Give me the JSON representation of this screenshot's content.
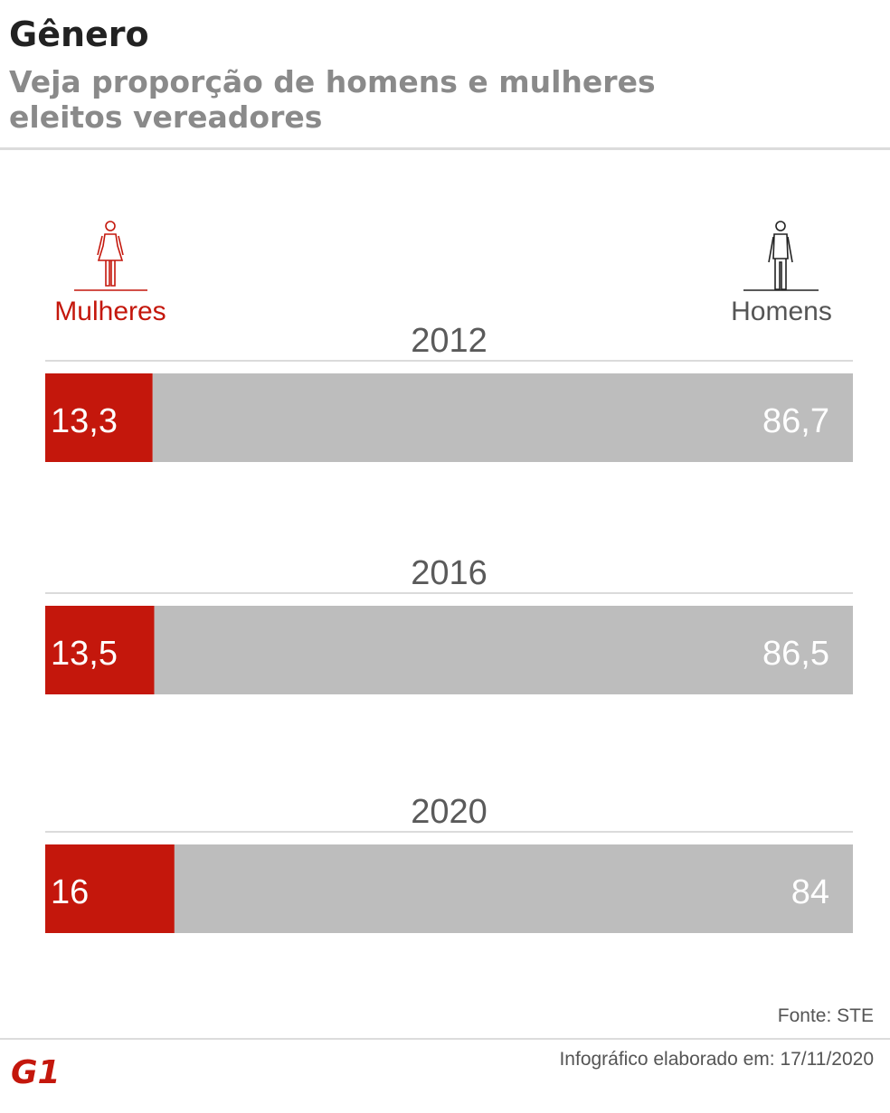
{
  "header": {
    "title": "Gênero",
    "subtitle": "Veja proporção de homens e mulheres eleitos vereadores"
  },
  "legend": {
    "women_label": "Mulheres",
    "men_label": "Homens",
    "women_icon": "woman-icon",
    "men_icon": "man-icon"
  },
  "colors": {
    "women": "#c4170c",
    "men": "#bdbdbd",
    "year_text": "#5a5a5a",
    "value_text": "#ffffff"
  },
  "chart_data": {
    "type": "bar",
    "orientation": "horizontal",
    "stacked": true,
    "unit": "%",
    "categories": [
      "2012",
      "2016",
      "2020"
    ],
    "series": [
      {
        "name": "Mulheres",
        "values": [
          13.3,
          13.5,
          16
        ],
        "labels": [
          "13,3",
          "13,5",
          "16"
        ]
      },
      {
        "name": "Homens",
        "values": [
          86.7,
          86.5,
          84
        ],
        "labels": [
          "86,7",
          "86,5",
          "84"
        ]
      }
    ],
    "xlim": [
      0,
      100
    ],
    "legend_position": "top"
  },
  "footer": {
    "source": "Fonte: STE",
    "credit": "Infográfico elaborado em: 17/11/2020",
    "logo": "g1-logo"
  }
}
